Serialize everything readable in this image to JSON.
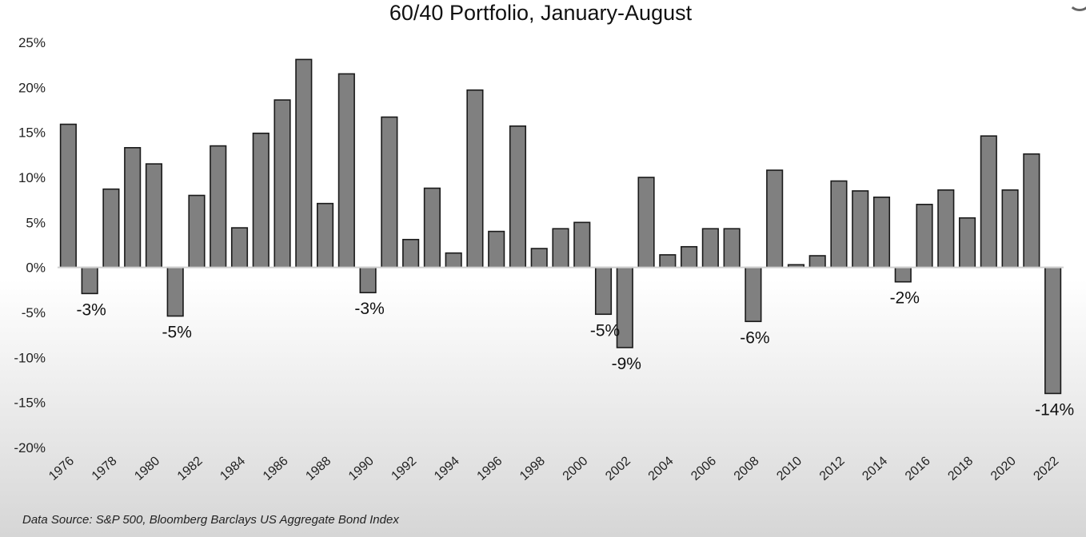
{
  "chart_data": {
    "type": "bar",
    "title": "60/40 Portfolio, January-August",
    "xlabel": "",
    "ylabel": "",
    "ylim": [
      -20,
      25
    ],
    "yticks": [
      25,
      20,
      15,
      10,
      5,
      0,
      -5,
      -10,
      -15,
      -20
    ],
    "ytick_labels": [
      "25%",
      "20%",
      "15%",
      "10%",
      "5%",
      "0%",
      "-5%",
      "-10%",
      "-15%",
      "-20%"
    ],
    "xtick_labels": [
      "1976",
      "1978",
      "1980",
      "1982",
      "1984",
      "1986",
      "1988",
      "1990",
      "1992",
      "1994",
      "1996",
      "1998",
      "2000",
      "2002",
      "2004",
      "2006",
      "2008",
      "2010",
      "2012",
      "2014",
      "2016",
      "2018",
      "2020",
      "2022"
    ],
    "categories": [
      "1976",
      "1977",
      "1978",
      "1979",
      "1980",
      "1981",
      "1982",
      "1983",
      "1984",
      "1985",
      "1986",
      "1987",
      "1988",
      "1989",
      "1990",
      "1991",
      "1992",
      "1993",
      "1994",
      "1995",
      "1996",
      "1997",
      "1998",
      "1999",
      "2000",
      "2001",
      "2002",
      "2003",
      "2004",
      "2005",
      "2006",
      "2007",
      "2008",
      "2009",
      "2010",
      "2011",
      "2012",
      "2013",
      "2014",
      "2015",
      "2016",
      "2017",
      "2018",
      "2019",
      "2020",
      "2021",
      "2022"
    ],
    "values": [
      15.9,
      -2.9,
      8.7,
      13.3,
      11.5,
      -5.4,
      8.0,
      13.5,
      4.4,
      14.9,
      18.6,
      23.1,
      7.1,
      21.5,
      -2.8,
      16.7,
      3.1,
      8.8,
      1.6,
      19.7,
      4.0,
      15.7,
      2.1,
      4.3,
      5.0,
      -5.2,
      -8.9,
      10.0,
      1.4,
      2.3,
      4.3,
      4.3,
      -6.0,
      10.8,
      0.3,
      1.3,
      9.6,
      8.5,
      7.8,
      -1.6,
      7.0,
      8.6,
      5.5,
      14.6,
      8.6,
      12.6,
      -14.0
    ],
    "annotations": [
      {
        "year": "1977",
        "text": "-3%"
      },
      {
        "year": "1981",
        "text": "-5%"
      },
      {
        "year": "1990",
        "text": "-3%"
      },
      {
        "year": "2001",
        "text": "-5%"
      },
      {
        "year": "2002",
        "text": "-9%"
      },
      {
        "year": "2008",
        "text": "-6%"
      },
      {
        "year": "2015",
        "text": "-2%"
      },
      {
        "year": "2022",
        "text": "-14%"
      }
    ],
    "bar_color": "#808080",
    "grid": false,
    "legend": "none"
  },
  "footer": {
    "source": "Data Source: S&P 500, Bloomberg Barclays US Aggregate Bond Index"
  }
}
